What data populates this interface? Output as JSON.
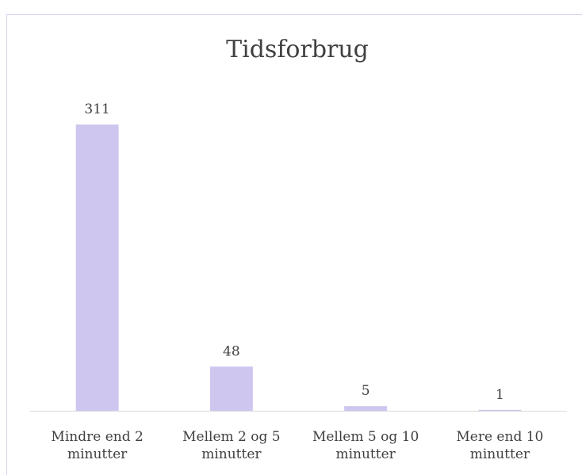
{
  "chart_data": {
    "type": "bar",
    "title": "Tidsforbrug",
    "categories": [
      "Mindre end 2 minutter",
      "Mellem 2 og 5 minutter",
      "Mellem 5 og 10 minutter",
      "Mere end 10 minutter"
    ],
    "values": [
      311,
      48,
      5,
      1
    ],
    "color": "#cfc6ef"
  }
}
